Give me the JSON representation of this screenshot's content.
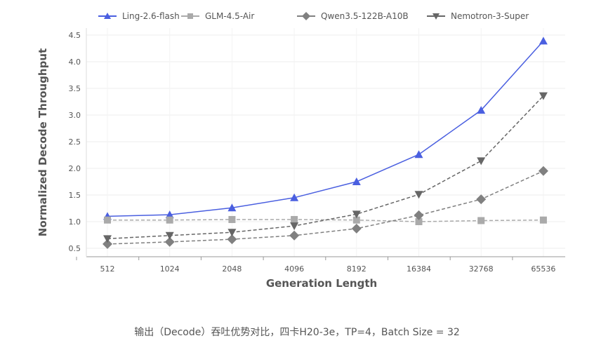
{
  "chart_data": {
    "type": "line",
    "title": "",
    "xlabel": "Generation Length",
    "ylabel": "Normalized Decode Throughput",
    "categories": [
      "512",
      "1024",
      "2048",
      "4096",
      "8192",
      "16384",
      "32768",
      "65536"
    ],
    "ylim": [
      0.4,
      4.5
    ],
    "yticks": [
      0.5,
      1.0,
      1.5,
      2.0,
      2.5,
      3.0,
      3.5,
      4.0,
      4.5
    ],
    "ytick_labels": [
      "0.5",
      "1.0",
      "1.5",
      "2.0",
      "2.5",
      "3.0",
      "3.5",
      "4.0",
      "4.5"
    ],
    "grid": true,
    "legend_position": "top",
    "series": [
      {
        "name": "Ling-2.6-flash",
        "color": "#4a5fe0",
        "marker": "triangle-up",
        "dash": false,
        "values": [
          1.1,
          1.13,
          1.26,
          1.45,
          1.75,
          2.26,
          3.09,
          4.39
        ]
      },
      {
        "name": "GLM-4.5-Air",
        "color": "#aaaaaa",
        "marker": "square",
        "dash": true,
        "values": [
          1.03,
          1.03,
          1.04,
          1.04,
          1.03,
          1.0,
          1.02,
          1.03
        ]
      },
      {
        "name": "Qwen3.5-122B-A10B",
        "color": "#808080",
        "marker": "diamond",
        "dash": true,
        "values": [
          0.58,
          0.62,
          0.67,
          0.74,
          0.87,
          1.12,
          1.42,
          1.95
        ]
      },
      {
        "name": "Nemotron-3-Super",
        "color": "#666666",
        "marker": "triangle-down",
        "dash": true,
        "values": [
          0.68,
          0.74,
          0.8,
          0.92,
          1.14,
          1.51,
          2.14,
          3.36
        ]
      }
    ]
  },
  "caption": "输出（Decode）吞吐优势对比，四卡H20-3e，TP=4，Batch Size = 32"
}
